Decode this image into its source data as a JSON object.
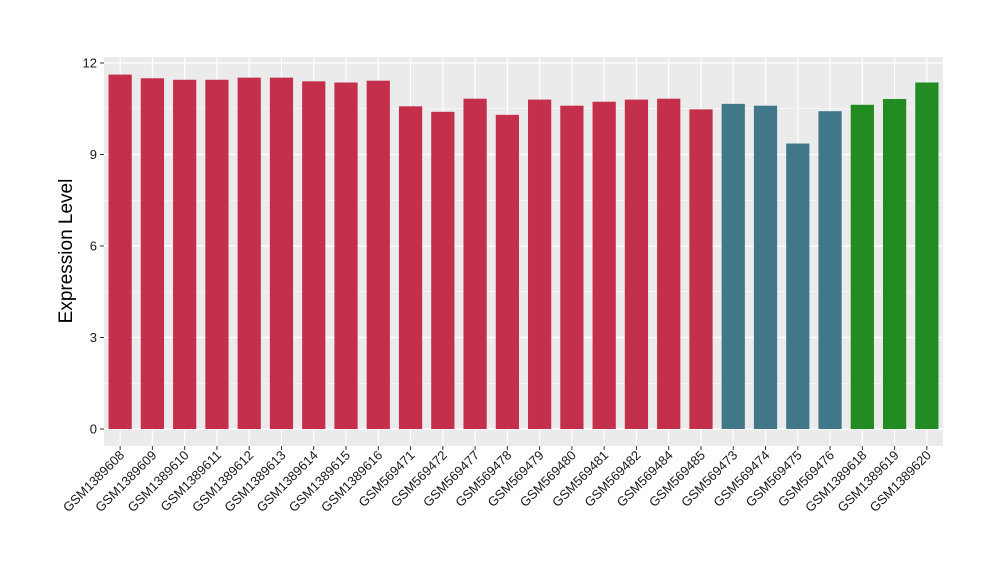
{
  "chart_data": {
    "type": "bar",
    "title": "",
    "xlabel": "",
    "ylabel": "Expression Level",
    "ylim": [
      0,
      12.2
    ],
    "yticks": [
      0,
      3,
      6,
      9,
      12
    ],
    "grid": true,
    "legend": "none",
    "panel_color": "#ebebeb",
    "categories": [
      "GSM1389608",
      "GSM1389609",
      "GSM1389610",
      "GSM1389611",
      "GSM1389612",
      "GSM1389613",
      "GSM1389614",
      "GSM1389615",
      "GSM1389616",
      "GSM569471",
      "GSM569472",
      "GSM569477",
      "GSM569478",
      "GSM569479",
      "GSM569480",
      "GSM569481",
      "GSM569482",
      "GSM569484",
      "GSM569485",
      "GSM569473",
      "GSM569474",
      "GSM569475",
      "GSM569476",
      "GSM1389618",
      "GSM1389619",
      "GSM1389620"
    ],
    "values": [
      11.62,
      11.5,
      11.45,
      11.45,
      11.52,
      11.52,
      11.4,
      11.36,
      11.42,
      10.58,
      10.4,
      10.83,
      10.3,
      10.8,
      10.6,
      10.73,
      10.8,
      10.83,
      10.48,
      10.66,
      10.6,
      9.36,
      10.42,
      10.63,
      10.82,
      11.36
    ],
    "colors": [
      "#c4304b",
      "#c4304b",
      "#c4304b",
      "#c4304b",
      "#c4304b",
      "#c4304b",
      "#c4304b",
      "#c4304b",
      "#c4304b",
      "#c4304b",
      "#c4304b",
      "#c4304b",
      "#c4304b",
      "#c4304b",
      "#c4304b",
      "#c4304b",
      "#c4304b",
      "#c4304b",
      "#c4304b",
      "#40788a",
      "#40788a",
      "#40788a",
      "#40788a",
      "#228b22",
      "#228b22",
      "#228b22"
    ]
  }
}
